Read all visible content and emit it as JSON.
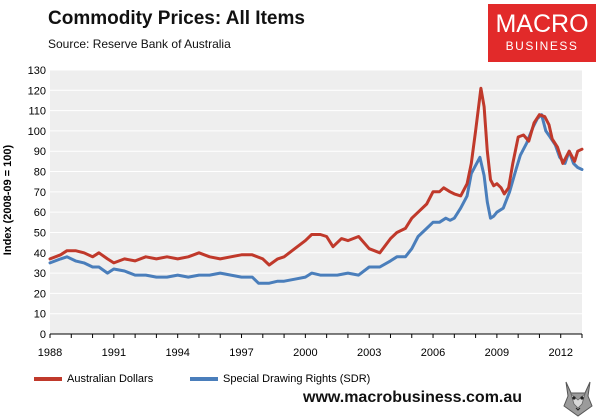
{
  "header": {
    "title": "Commodity Prices: All Items",
    "subtitle": "Source:  Reserve Bank of Australia"
  },
  "logo": {
    "line1": "MACRO",
    "line2": "BUSINESS"
  },
  "footer": {
    "website": "www.macrobusiness.com.au"
  },
  "colors": {
    "aud": "#c0392b",
    "sdr": "#4a7ebb",
    "plot_bg": "#eeeeee",
    "gridline": "#ffffff",
    "logo_bg": "#e22a2a"
  },
  "chart_data": {
    "type": "line",
    "title": "Commodity Prices: All Items",
    "subtitle": "Source:  Reserve Bank of Australia",
    "xlabel": "",
    "ylabel": "Index (2008-09 = 100)",
    "xlim": [
      1988,
      2013
    ],
    "ylim": [
      0,
      130
    ],
    "y_ticks": [
      0,
      10,
      20,
      30,
      40,
      50,
      60,
      70,
      80,
      90,
      100,
      110,
      120,
      130
    ],
    "x_ticks": [
      1988,
      1991,
      1994,
      1997,
      2000,
      2003,
      2006,
      2009,
      2012
    ],
    "x_tick_labels": [
      "1988",
      "1991",
      "1994",
      "1997",
      "2000",
      "2003",
      "2006",
      "2009",
      "2012"
    ],
    "grid": "horizontal",
    "legend": "bottom",
    "series": [
      {
        "name": "Australian Dollars",
        "color": "#c0392b",
        "points": [
          [
            1988.0,
            37
          ],
          [
            1988.5,
            39
          ],
          [
            1988.8,
            41
          ],
          [
            1989.2,
            41
          ],
          [
            1989.6,
            40
          ],
          [
            1990.0,
            38
          ],
          [
            1990.3,
            40
          ],
          [
            1990.7,
            37
          ],
          [
            1991.0,
            35
          ],
          [
            1991.5,
            37
          ],
          [
            1992.0,
            36
          ],
          [
            1992.5,
            38
          ],
          [
            1993.0,
            37
          ],
          [
            1993.5,
            38
          ],
          [
            1994.0,
            37
          ],
          [
            1994.5,
            38
          ],
          [
            1995.0,
            40
          ],
          [
            1995.5,
            38
          ],
          [
            1996.0,
            37
          ],
          [
            1996.5,
            38
          ],
          [
            1997.0,
            39
          ],
          [
            1997.5,
            39
          ],
          [
            1998.0,
            37
          ],
          [
            1998.3,
            34
          ],
          [
            1998.7,
            37
          ],
          [
            1999.0,
            38
          ],
          [
            1999.5,
            42
          ],
          [
            2000.0,
            46
          ],
          [
            2000.3,
            49
          ],
          [
            2000.7,
            49
          ],
          [
            2001.0,
            48
          ],
          [
            2001.3,
            43
          ],
          [
            2001.7,
            47
          ],
          [
            2002.0,
            46
          ],
          [
            2002.5,
            48
          ],
          [
            2003.0,
            42
          ],
          [
            2003.5,
            40
          ],
          [
            2004.0,
            47
          ],
          [
            2004.3,
            50
          ],
          [
            2004.7,
            52
          ],
          [
            2005.0,
            57
          ],
          [
            2005.3,
            60
          ],
          [
            2005.7,
            64
          ],
          [
            2006.0,
            70
          ],
          [
            2006.3,
            70
          ],
          [
            2006.5,
            72
          ],
          [
            2006.8,
            70
          ],
          [
            2007.0,
            69
          ],
          [
            2007.3,
            68
          ],
          [
            2007.6,
            74
          ],
          [
            2007.8,
            84
          ],
          [
            2008.0,
            100
          ],
          [
            2008.25,
            121
          ],
          [
            2008.4,
            112
          ],
          [
            2008.55,
            90
          ],
          [
            2008.7,
            76
          ],
          [
            2008.85,
            73
          ],
          [
            2009.0,
            74
          ],
          [
            2009.2,
            72
          ],
          [
            2009.35,
            69
          ],
          [
            2009.55,
            72
          ],
          [
            2009.75,
            84
          ],
          [
            2010.0,
            97
          ],
          [
            2010.25,
            98
          ],
          [
            2010.5,
            95
          ],
          [
            2010.75,
            104
          ],
          [
            2011.0,
            108
          ],
          [
            2011.25,
            107
          ],
          [
            2011.45,
            103
          ],
          [
            2011.6,
            96
          ],
          [
            2011.85,
            92
          ],
          [
            2012.1,
            84
          ],
          [
            2012.4,
            90
          ],
          [
            2012.65,
            85
          ],
          [
            2012.8,
            90
          ],
          [
            2013.0,
            91
          ]
        ]
      },
      {
        "name": "Special Drawing Rights (SDR)",
        "color": "#4a7ebb",
        "points": [
          [
            1988.0,
            35
          ],
          [
            1988.5,
            37
          ],
          [
            1988.8,
            38
          ],
          [
            1989.2,
            36
          ],
          [
            1989.6,
            35
          ],
          [
            1990.0,
            33
          ],
          [
            1990.3,
            33
          ],
          [
            1990.7,
            30
          ],
          [
            1991.0,
            32
          ],
          [
            1991.5,
            31
          ],
          [
            1992.0,
            29
          ],
          [
            1992.5,
            29
          ],
          [
            1993.0,
            28
          ],
          [
            1993.5,
            28
          ],
          [
            1994.0,
            29
          ],
          [
            1994.5,
            28
          ],
          [
            1995.0,
            29
          ],
          [
            1995.5,
            29
          ],
          [
            1996.0,
            30
          ],
          [
            1996.5,
            29
          ],
          [
            1997.0,
            28
          ],
          [
            1997.5,
            28
          ],
          [
            1997.8,
            25
          ],
          [
            1998.3,
            25
          ],
          [
            1998.7,
            26
          ],
          [
            1999.0,
            26
          ],
          [
            1999.5,
            27
          ],
          [
            2000.0,
            28
          ],
          [
            2000.3,
            30
          ],
          [
            2000.7,
            29
          ],
          [
            2001.0,
            29
          ],
          [
            2001.5,
            29
          ],
          [
            2002.0,
            30
          ],
          [
            2002.5,
            29
          ],
          [
            2003.0,
            33
          ],
          [
            2003.5,
            33
          ],
          [
            2004.0,
            36
          ],
          [
            2004.3,
            38
          ],
          [
            2004.7,
            38
          ],
          [
            2005.0,
            42
          ],
          [
            2005.3,
            48
          ],
          [
            2005.7,
            52
          ],
          [
            2006.0,
            55
          ],
          [
            2006.3,
            55
          ],
          [
            2006.6,
            57
          ],
          [
            2006.8,
            56
          ],
          [
            2007.0,
            57
          ],
          [
            2007.3,
            62
          ],
          [
            2007.6,
            68
          ],
          [
            2007.8,
            79
          ],
          [
            2008.0,
            83
          ],
          [
            2008.2,
            87
          ],
          [
            2008.4,
            78
          ],
          [
            2008.55,
            65
          ],
          [
            2008.7,
            57
          ],
          [
            2008.85,
            58
          ],
          [
            2009.0,
            60
          ],
          [
            2009.3,
            62
          ],
          [
            2009.6,
            70
          ],
          [
            2009.9,
            81
          ],
          [
            2010.1,
            88
          ],
          [
            2010.4,
            94
          ],
          [
            2010.7,
            102
          ],
          [
            2010.9,
            106
          ],
          [
            2011.1,
            108
          ],
          [
            2011.3,
            100
          ],
          [
            2011.5,
            97
          ],
          [
            2011.75,
            93
          ],
          [
            2011.95,
            87
          ],
          [
            2012.2,
            84
          ],
          [
            2012.4,
            90
          ],
          [
            2012.6,
            84
          ],
          [
            2012.8,
            82
          ],
          [
            2013.0,
            81
          ]
        ]
      }
    ]
  }
}
